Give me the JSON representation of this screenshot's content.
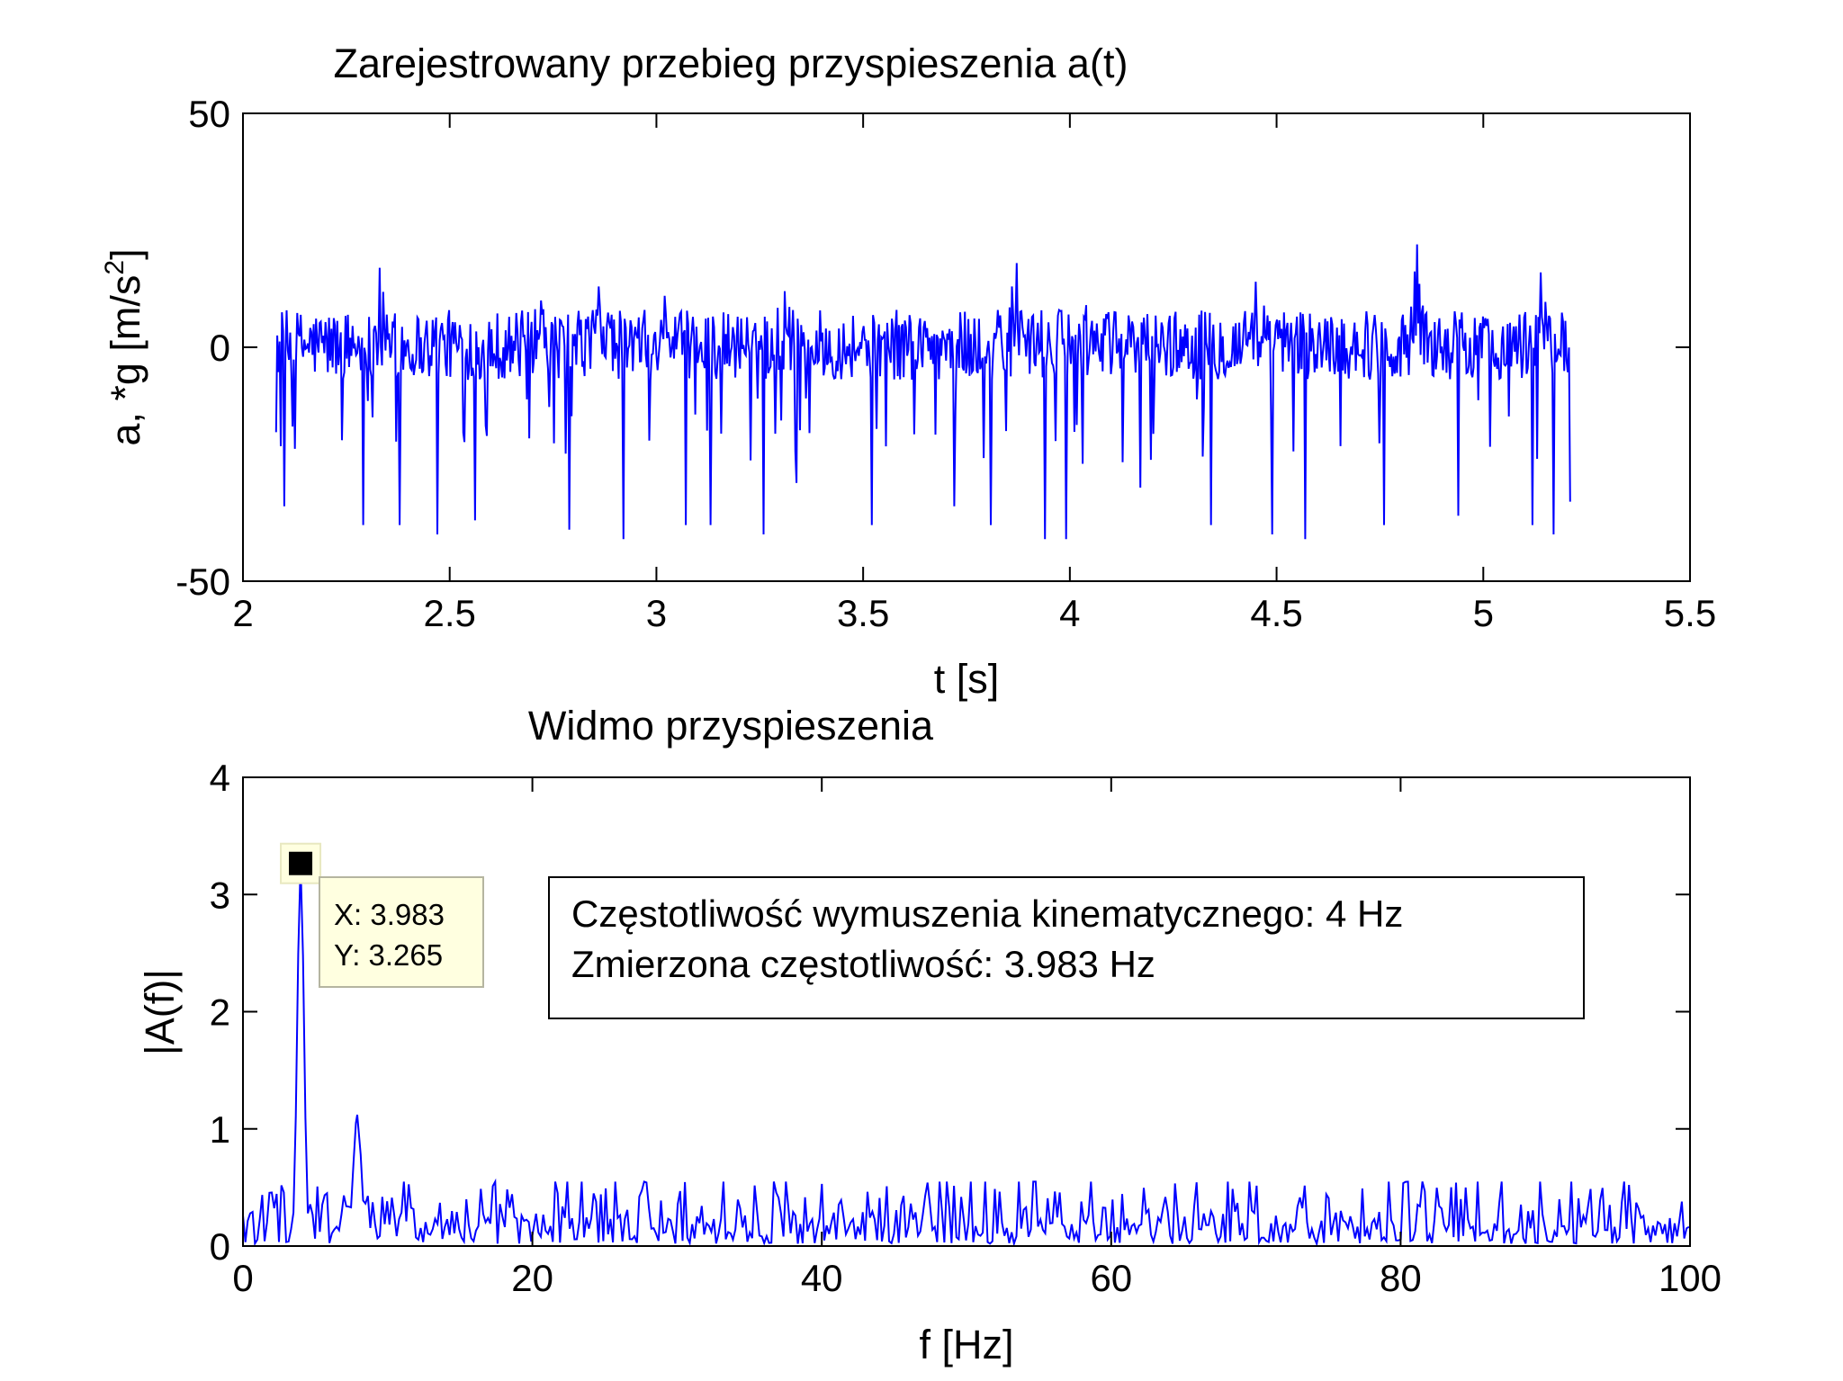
{
  "chart_data": [
    {
      "type": "line",
      "title": "Zarejestrowany przebieg przyspieszenia a(t)",
      "xlabel": "t [s]",
      "ylabel": "a, *g [m/s",
      "ylabel_sup": "2",
      "ylabel_end": "]",
      "xlim": [
        2,
        5.5
      ],
      "ylim": [
        -50,
        50
      ],
      "xticks": [
        2,
        2.5,
        3,
        3.5,
        4,
        4.5,
        5,
        5.5
      ],
      "xtick_labels": [
        "2",
        "2.5",
        "3",
        "3.5",
        "4",
        "4.5",
        "5",
        "5.5"
      ],
      "yticks": [
        -50,
        0,
        50
      ],
      "ytick_labels": [
        "-50",
        "0",
        "50"
      ],
      "grid": false,
      "series": [
        {
          "color": "#0000ff",
          "x_range": [
            2.08,
            5.21
          ],
          "samples": 1100,
          "baseline_range": [
            -7,
            8
          ],
          "peaks": [
            {
              "x": 2.33,
              "y": 17
            },
            {
              "x": 2.72,
              "y": 10
            },
            {
              "x": 2.86,
              "y": 13
            },
            {
              "x": 3.02,
              "y": 11
            },
            {
              "x": 3.31,
              "y": 12
            },
            {
              "x": 3.87,
              "y": 18
            },
            {
              "x": 4.04,
              "y": 9
            },
            {
              "x": 4.45,
              "y": 14
            },
            {
              "x": 4.84,
              "y": 22
            },
            {
              "x": 5.14,
              "y": 16
            }
          ],
          "spikes": [
            {
              "x": 2.1,
              "y": -34
            },
            {
              "x": 2.29,
              "y": -38
            },
            {
              "x": 2.38,
              "y": -38
            },
            {
              "x": 2.47,
              "y": -40
            },
            {
              "x": 2.56,
              "y": -37
            },
            {
              "x": 2.79,
              "y": -39
            },
            {
              "x": 2.92,
              "y": -41
            },
            {
              "x": 3.07,
              "y": -38
            },
            {
              "x": 3.13,
              "y": -38
            },
            {
              "x": 3.26,
              "y": -40
            },
            {
              "x": 3.34,
              "y": -29
            },
            {
              "x": 3.52,
              "y": -38
            },
            {
              "x": 3.72,
              "y": -34
            },
            {
              "x": 3.81,
              "y": -38
            },
            {
              "x": 3.94,
              "y": -41
            },
            {
              "x": 3.99,
              "y": -41
            },
            {
              "x": 4.17,
              "y": -30
            },
            {
              "x": 4.34,
              "y": -38
            },
            {
              "x": 4.49,
              "y": -40
            },
            {
              "x": 4.57,
              "y": -41
            },
            {
              "x": 4.76,
              "y": -38
            },
            {
              "x": 4.94,
              "y": -36
            },
            {
              "x": 5.12,
              "y": -38
            },
            {
              "x": 5.17,
              "y": -40
            },
            {
              "x": 5.21,
              "y": -33
            }
          ]
        }
      ]
    },
    {
      "type": "line",
      "title": "Widmo przyspieszenia",
      "xlabel": "f [Hz]",
      "ylabel": "|A(f)|",
      "xlim": [
        0,
        100
      ],
      "ylim": [
        0,
        4
      ],
      "xticks": [
        0,
        20,
        40,
        60,
        80,
        100
      ],
      "xtick_labels": [
        "0",
        "20",
        "40",
        "60",
        "80",
        "100"
      ],
      "yticks": [
        0,
        1,
        2,
        3,
        4
      ],
      "ytick_labels": [
        "0",
        "1",
        "2",
        "3",
        "4"
      ],
      "grid": false,
      "series": [
        {
          "color": "#0000ff",
          "df": 0.166,
          "noise_range": [
            0.02,
            0.55
          ],
          "peaks": [
            {
              "x": 3.983,
              "y": 3.265
            },
            {
              "x": 7.9,
              "y": 1.12
            }
          ]
        }
      ],
      "datatip": {
        "x": 3.983,
        "y": 3.265,
        "x_label": "X: 3.983",
        "y_label": "Y: 3.265"
      },
      "annotation": {
        "line1": "Częstotliwość wymuszenia kinematycznego: 4 Hz",
        "line2": "Zmierzona częstotliwość: 3.983 Hz"
      }
    }
  ]
}
